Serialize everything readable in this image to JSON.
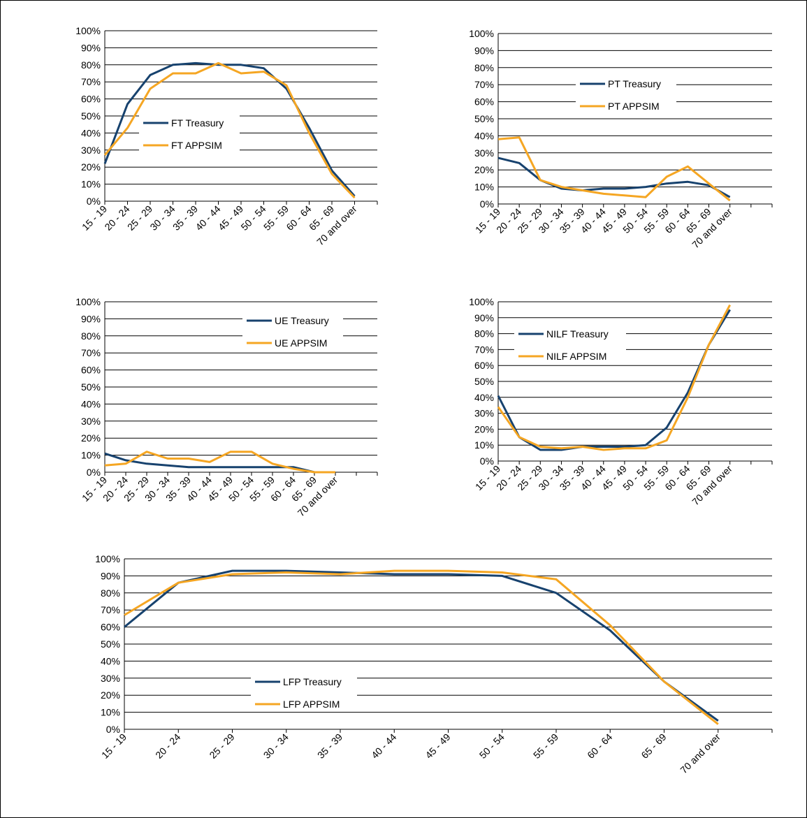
{
  "colors": {
    "treasury": "#17426E",
    "appsim": "#F5A623"
  },
  "chart_data": [
    {
      "type": "line",
      "id": "ft",
      "categories": [
        "15 - 19",
        "20 - 24",
        "25 - 29",
        "30 - 34",
        "35 - 39",
        "40 - 44",
        "45 - 49",
        "50 - 54",
        "55 - 59",
        "60 - 64",
        "65 - 69",
        "70 and over"
      ],
      "yticks": [
        "0%",
        "10%",
        "20%",
        "30%",
        "40%",
        "50%",
        "60%",
        "70%",
        "80%",
        "90%",
        "100%"
      ],
      "ylim": [
        0,
        100
      ],
      "series": [
        {
          "name": "FT Treasury",
          "values": [
            22,
            57,
            74,
            80,
            81,
            80,
            80,
            78,
            66,
            43,
            18,
            3
          ]
        },
        {
          "name": "FT APPSIM",
          "values": [
            27,
            43,
            66,
            75,
            75,
            81,
            75,
            76,
            68,
            40,
            16,
            2
          ]
        }
      ],
      "legend": "center-left",
      "grid": true
    },
    {
      "type": "line",
      "id": "pt",
      "categories": [
        "15 - 19",
        "20 - 24",
        "25 - 29",
        "30 - 34",
        "35 - 39",
        "40 - 44",
        "45 - 49",
        "50 - 54",
        "55 - 59",
        "60 - 64",
        "65 - 69",
        "70 and over"
      ],
      "yticks": [
        "0%",
        "10%",
        "20%",
        "30%",
        "40%",
        "50%",
        "60%",
        "70%",
        "80%",
        "90%",
        "100%"
      ],
      "ylim": [
        0,
        100
      ],
      "series": [
        {
          "name": "PT Treasury",
          "values": [
            27,
            24,
            14,
            9,
            8,
            9,
            9,
            10,
            12,
            13,
            11,
            4
          ]
        },
        {
          "name": "PT APPSIM",
          "values": [
            38,
            39,
            14,
            10,
            8,
            6,
            5,
            4,
            16,
            22,
            12,
            2
          ]
        }
      ],
      "legend": "top-center",
      "grid": true
    },
    {
      "type": "line",
      "id": "ue",
      "categories": [
        "15 - 19",
        "20 - 24",
        "25 - 29",
        "30 - 34",
        "35 - 39",
        "40 - 44",
        "45 - 49",
        "50 - 54",
        "55 - 59",
        "60 - 64",
        "65 - 69",
        "70 and over"
      ],
      "yticks": [
        "0%",
        "10%",
        "20%",
        "30%",
        "40%",
        "50%",
        "60%",
        "70%",
        "80%",
        "90%",
        "100%"
      ],
      "ylim": [
        0,
        100
      ],
      "series": [
        {
          "name": "UE Treasury",
          "values": [
            11,
            7,
            5,
            4,
            3,
            3,
            3,
            3,
            3,
            3,
            0,
            0
          ]
        },
        {
          "name": "UE APPSIM",
          "values": [
            4,
            5,
            12,
            8,
            8,
            6,
            12,
            12,
            5,
            2,
            0,
            0
          ]
        }
      ],
      "legend": "top-right",
      "grid": true
    },
    {
      "type": "line",
      "id": "nilf",
      "categories": [
        "15 - 19",
        "20 - 24",
        "25 - 29",
        "30 - 34",
        "35 - 39",
        "40 - 44",
        "45 - 49",
        "50 - 54",
        "55 - 59",
        "60 - 64",
        "65 - 69",
        "70 and over"
      ],
      "yticks": [
        "0%",
        "10%",
        "20%",
        "30%",
        "40%",
        "50%",
        "60%",
        "70%",
        "80%",
        "90%",
        "100%"
      ],
      "ylim": [
        0,
        100
      ],
      "series": [
        {
          "name": "NILF Treasury",
          "values": [
            41,
            15,
            7,
            7,
            9,
            9,
            9,
            10,
            21,
            43,
            73,
            95
          ]
        },
        {
          "name": "NILF APPSIM",
          "values": [
            34,
            15,
            9,
            8,
            9,
            7,
            8,
            8,
            13,
            40,
            73,
            98
          ]
        }
      ],
      "legend": "top-left",
      "grid": true
    },
    {
      "type": "line",
      "id": "lfp",
      "categories": [
        "15 - 19",
        "20 - 24",
        "25 - 29",
        "30 - 34",
        "35 - 39",
        "40 - 44",
        "45 - 49",
        "50 - 54",
        "55 - 59",
        "60 - 64",
        "65 - 69",
        "70 and over"
      ],
      "yticks": [
        "0%",
        "10%",
        "20%",
        "30%",
        "40%",
        "50%",
        "60%",
        "70%",
        "80%",
        "90%",
        "100%"
      ],
      "ylim": [
        0,
        100
      ],
      "series": [
        {
          "name": "LFP Treasury",
          "values": [
            60,
            86,
            93,
            93,
            92,
            91,
            91,
            90,
            80,
            58,
            28,
            5
          ]
        },
        {
          "name": "LFP APPSIM",
          "values": [
            67,
            86,
            91,
            92,
            91,
            93,
            93,
            92,
            88,
            61,
            28,
            3
          ]
        }
      ],
      "legend": "bottom-center",
      "grid": true
    }
  ]
}
